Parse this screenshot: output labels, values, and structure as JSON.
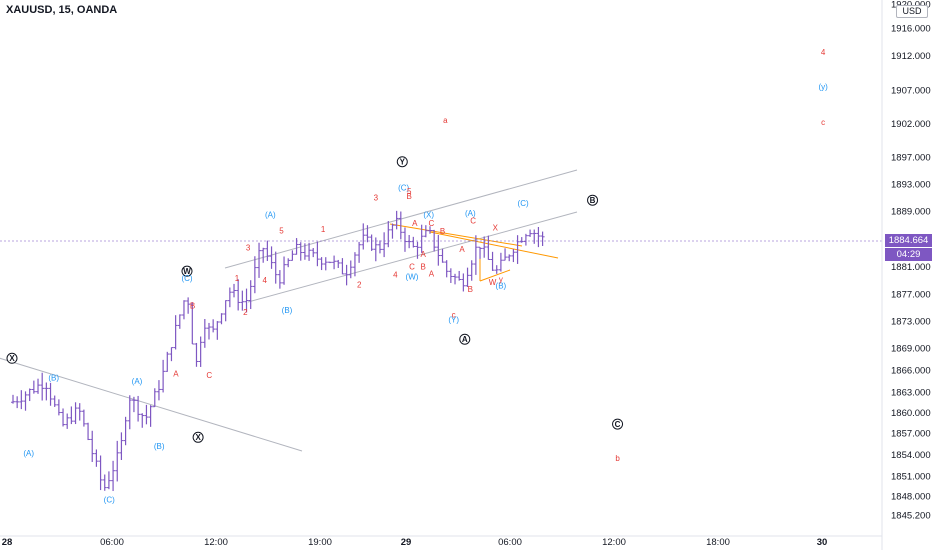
{
  "header": {
    "title": "XAUUSD, 15, OANDA"
  },
  "price_axis": {
    "currency": "USD",
    "ticks": [
      "1845.200",
      "1848.000",
      "1851.000",
      "1854.000",
      "1857.000",
      "1860.000",
      "1863.000",
      "1866.000",
      "1869.000",
      "1873.000",
      "1877.000",
      "1881.000",
      "1884.664",
      "1889.000",
      "1893.000",
      "1897.000",
      "1902.000",
      "1907.000",
      "1912.000",
      "1916.000",
      "1920.000"
    ],
    "top_label": "1920.000",
    "last_price": "1884.664",
    "countdown": "04:29",
    "last_price_color": "#7e57c2"
  },
  "time_axis": {
    "labels": [
      "28",
      "06:00",
      "12:00",
      "19:00",
      "29",
      "06:00",
      "12:00",
      "18:00",
      "30"
    ]
  },
  "colors": {
    "bars": "#7e57c2",
    "red_labels": "#e53935",
    "blue_labels": "#2196f3",
    "channel": "#b2b5be",
    "orange_lines": "#ff9800",
    "black_circles": "#131722"
  },
  "chart_data": {
    "type": "ohlc",
    "symbol": "XAUUSD",
    "interval": "15",
    "source": "OANDA",
    "y_range": [
      1845.2,
      1920
    ],
    "last_price": 1884.664,
    "y_ticks": [
      1845.2,
      1848,
      1851,
      1854,
      1857,
      1860,
      1863,
      1866,
      1869,
      1873,
      1877,
      1881,
      1884.664,
      1889,
      1893,
      1897,
      1902,
      1907,
      1912,
      1916,
      1920
    ],
    "swing_path": [
      [
        "28 00:00",
        1861.5
      ],
      [
        "28 02:00",
        1864.5
      ],
      [
        "28 03:00",
        1858
      ],
      [
        "28 04:00",
        1860.5
      ],
      [
        "28 05:30",
        1849
      ],
      [
        "28 06:30",
        1854.5
      ],
      [
        "28 07:00",
        1862.5
      ],
      [
        "28 08:00",
        1859
      ],
      [
        "28 09:00",
        1865
      ],
      [
        "28 10:30",
        1877.5
      ],
      [
        "28 11:00",
        1866
      ],
      [
        "28 11:30",
        1873
      ],
      [
        "28 12:00",
        1871
      ],
      [
        "28 13:00",
        1877.5
      ],
      [
        "28 14:00",
        1875.5
      ],
      [
        "28 15:00",
        1884
      ],
      [
        "28 16:00",
        1879
      ],
      [
        "28 17:00",
        1883.5
      ],
      [
        "28 18:30",
        1882
      ],
      [
        "28 19:00",
        1882
      ],
      [
        "28 20:00",
        1880
      ],
      [
        "28 21:00",
        1885
      ],
      [
        "28 22:00",
        1883.5
      ],
      [
        "28 23:00",
        1887.5
      ],
      [
        "29 00:00",
        1883.5
      ],
      [
        "29 01:00",
        1886
      ],
      [
        "29 02:00",
        1880.5
      ],
      [
        "29 03:00",
        1878.5
      ],
      [
        "29 04:00",
        1884.5
      ],
      [
        "29 05:00",
        1880
      ],
      [
        "29 06:00",
        1883.5
      ],
      [
        "29 07:00",
        1886.5
      ],
      [
        "29 08:00",
        1884.7
      ]
    ],
    "wave_labels": [
      {
        "text": "a",
        "x": "29 02:00",
        "y": 1902.5,
        "color": "red"
      },
      {
        "text": "4",
        "x": "30 00:40",
        "y": 1912.5,
        "color": "red"
      },
      {
        "text": "(y)",
        "x": "30 00:40",
        "y": 1907.5,
        "color": "blue"
      },
      {
        "text": "c",
        "x": "30 00:40",
        "y": 1902.2,
        "color": "red"
      },
      {
        "text": "b",
        "x": "29 12:20",
        "y": 1853.5,
        "color": "red"
      },
      {
        "text": "Y",
        "x": "28 23:25",
        "y": 1896.3,
        "color": "circle"
      },
      {
        "text": "W",
        "x": "28 10:30",
        "y": 1880.3,
        "color": "circle"
      },
      {
        "text": "X",
        "x": "28 00:00",
        "y": 1867.6,
        "color": "circle"
      },
      {
        "text": "X",
        "x": "28 11:10",
        "y": 1856.4,
        "color": "circle"
      },
      {
        "text": "A",
        "x": "29 03:10",
        "y": 1870.3,
        "color": "circle"
      },
      {
        "text": "B",
        "x": "29 10:50",
        "y": 1890.6,
        "color": "circle"
      },
      {
        "text": "C",
        "x": "29 12:20",
        "y": 1858.3,
        "color": "circle"
      },
      {
        "text": "(A)",
        "x": "28 01:00",
        "y": 1854.2,
        "color": "blue"
      },
      {
        "text": "(B)",
        "x": "28 02:30",
        "y": 1865
      },
      {
        "text": "(C)",
        "x": "28 05:50",
        "y": 1847.5,
        "color": "blue"
      },
      {
        "text": "(A)",
        "x": "28 07:30",
        "y": 1864.5,
        "color": "blue"
      },
      {
        "text": "(B)",
        "x": "28 08:50",
        "y": 1855.2,
        "color": "blue"
      },
      {
        "text": "(C)",
        "x": "28 10:30",
        "y": 1879.3,
        "color": "blue"
      },
      {
        "text": "(B)",
        "x": "28 16:30",
        "y": 1874.6,
        "color": "blue"
      },
      {
        "text": "(A)",
        "x": "28 15:30",
        "y": 1888.5,
        "color": "blue"
      },
      {
        "text": "(C)",
        "x": "28 23:30",
        "y": 1892.5,
        "color": "blue"
      },
      {
        "text": "(X)",
        "x": "29 01:00",
        "y": 1888.5,
        "color": "blue"
      },
      {
        "text": "(W)",
        "x": "29 00:00",
        "y": 1879.5,
        "color": "blue"
      },
      {
        "text": "(A)",
        "x": "29 03:30",
        "y": 1888.7,
        "color": "blue"
      },
      {
        "text": "(Y)",
        "x": "29 02:30",
        "y": 1873.2,
        "color": "blue"
      },
      {
        "text": "(C)",
        "x": "29 06:40",
        "y": 1890.2,
        "color": "blue"
      },
      {
        "text": "(B)",
        "x": "29 05:20",
        "y": 1878.2,
        "color": "blue"
      },
      {
        "text": "A",
        "x": "28 09:50",
        "y": 1865.5,
        "color": "red"
      },
      {
        "text": "B",
        "x": "28 10:50",
        "y": 1875.3,
        "color": "red"
      },
      {
        "text": "C",
        "x": "28 11:50",
        "y": 1865.3,
        "color": "red"
      },
      {
        "text": "1",
        "x": "28 13:30",
        "y": 1879.3,
        "color": "red"
      },
      {
        "text": "2",
        "x": "28 14:00",
        "y": 1874.3,
        "color": "red"
      },
      {
        "text": "3",
        "x": "28 14:10",
        "y": 1883.7,
        "color": "red"
      },
      {
        "text": "4",
        "x": "28 15:10",
        "y": 1879,
        "color": "red"
      },
      {
        "text": "5",
        "x": "28 16:10",
        "y": 1886.2,
        "color": "red"
      },
      {
        "text": "1",
        "x": "28 18:40",
        "y": 1886.4,
        "color": "red"
      },
      {
        "text": "2",
        "x": "28 20:50",
        "y": 1878.4,
        "color": "red"
      },
      {
        "text": "3",
        "x": "28 21:50",
        "y": 1891,
        "color": "red"
      },
      {
        "text": "4",
        "x": "28 23:00",
        "y": 1879.8,
        "color": "red"
      },
      {
        "text": "5",
        "x": "28 23:50",
        "y": 1892,
        "color": "red"
      },
      {
        "text": "B",
        "x": "28 23:50",
        "y": 1891.2,
        "color": "red"
      },
      {
        "text": "A",
        "x": "29 00:10",
        "y": 1887.3,
        "color": "red"
      },
      {
        "text": "C",
        "x": "29 01:10",
        "y": 1887.3,
        "color": "red"
      },
      {
        "text": "B",
        "x": "29 01:50",
        "y": 1886.1,
        "color": "red"
      },
      {
        "text": "A",
        "x": "29 00:40",
        "y": 1882.8,
        "color": "red"
      },
      {
        "text": "C",
        "x": "29 00:00",
        "y": 1881,
        "color": "red"
      },
      {
        "text": "B",
        "x": "29 00:40",
        "y": 1881,
        "color": "red"
      },
      {
        "text": "A",
        "x": "29 01:10",
        "y": 1880,
        "color": "red"
      },
      {
        "text": "A",
        "x": "29 03:00",
        "y": 1883.5,
        "color": "red"
      },
      {
        "text": "B",
        "x": "29 03:30",
        "y": 1877.7,
        "color": "red"
      },
      {
        "text": "c",
        "x": "29 02:30",
        "y": 1874,
        "color": "red"
      },
      {
        "text": "C",
        "x": "29 03:40",
        "y": 1887.6,
        "color": "red"
      },
      {
        "text": "X",
        "x": "29 05:00",
        "y": 1886.6,
        "color": "red"
      },
      {
        "text": "W",
        "x": "29 04:50",
        "y": 1878.7,
        "color": "red"
      },
      {
        "text": "y",
        "x": "29 05:20",
        "y": 1879.2,
        "color": "red"
      }
    ]
  }
}
